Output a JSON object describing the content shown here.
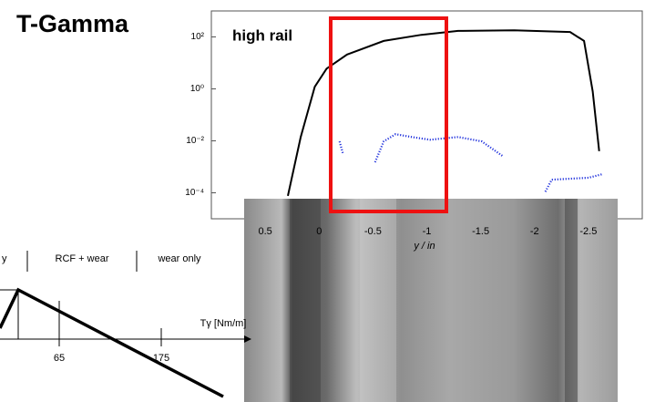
{
  "title": "T-Gamma",
  "chart_data": {
    "type": "line",
    "annotation": "high rail",
    "xlabel": "y / in",
    "yscale": "log",
    "grid": false,
    "xlim": [
      1,
      -3
    ],
    "xticks": [
      0.5,
      0,
      -0.5,
      -1,
      -1.5,
      -2,
      -2.5
    ],
    "ylim": [
      1e-05,
      1000
    ],
    "yticks": [
      {
        "value": 100,
        "label": "10²"
      },
      {
        "value": 1,
        "label": "10⁰"
      },
      {
        "value": 0.01,
        "label": "10⁻²"
      },
      {
        "value": 0.0001,
        "label": "10⁻⁴"
      }
    ],
    "series": [
      {
        "color": "#000000",
        "style": "solid",
        "x": [
          0.29,
          0.17,
          0.04,
          -0.07,
          -0.26,
          -0.6,
          -0.95,
          -1.29,
          -1.81,
          -2.33,
          -2.46,
          -2.54,
          -2.6
        ],
        "values": [
          7.6e-05,
          0.014,
          1.2,
          6,
          21,
          70,
          120,
          170,
          180,
          155,
          70,
          0.8,
          0.004
        ]
      },
      {
        "color": "#2233dd",
        "style": "dotted",
        "x": [
          -0.19,
          -0.22,
          null,
          -0.52,
          -0.6,
          -0.71,
          -0.86,
          -1.03,
          -1.29,
          -1.51,
          -1.71,
          null,
          -2.1,
          -2.16,
          -2.5,
          -2.63
        ],
        "values": [
          0.0095,
          0.0034,
          null,
          0.0015,
          0.0095,
          0.018,
          0.014,
          0.011,
          0.014,
          0.0095,
          0.0025,
          null,
          0.00011,
          0.00032,
          0.00038,
          0.00052
        ]
      }
    ]
  },
  "diagram": {
    "zones": [
      "y",
      "RCF + wear",
      "wear only"
    ],
    "axis_label": "Tγ [Nm/m]",
    "ticks": [
      "65",
      "175"
    ]
  }
}
